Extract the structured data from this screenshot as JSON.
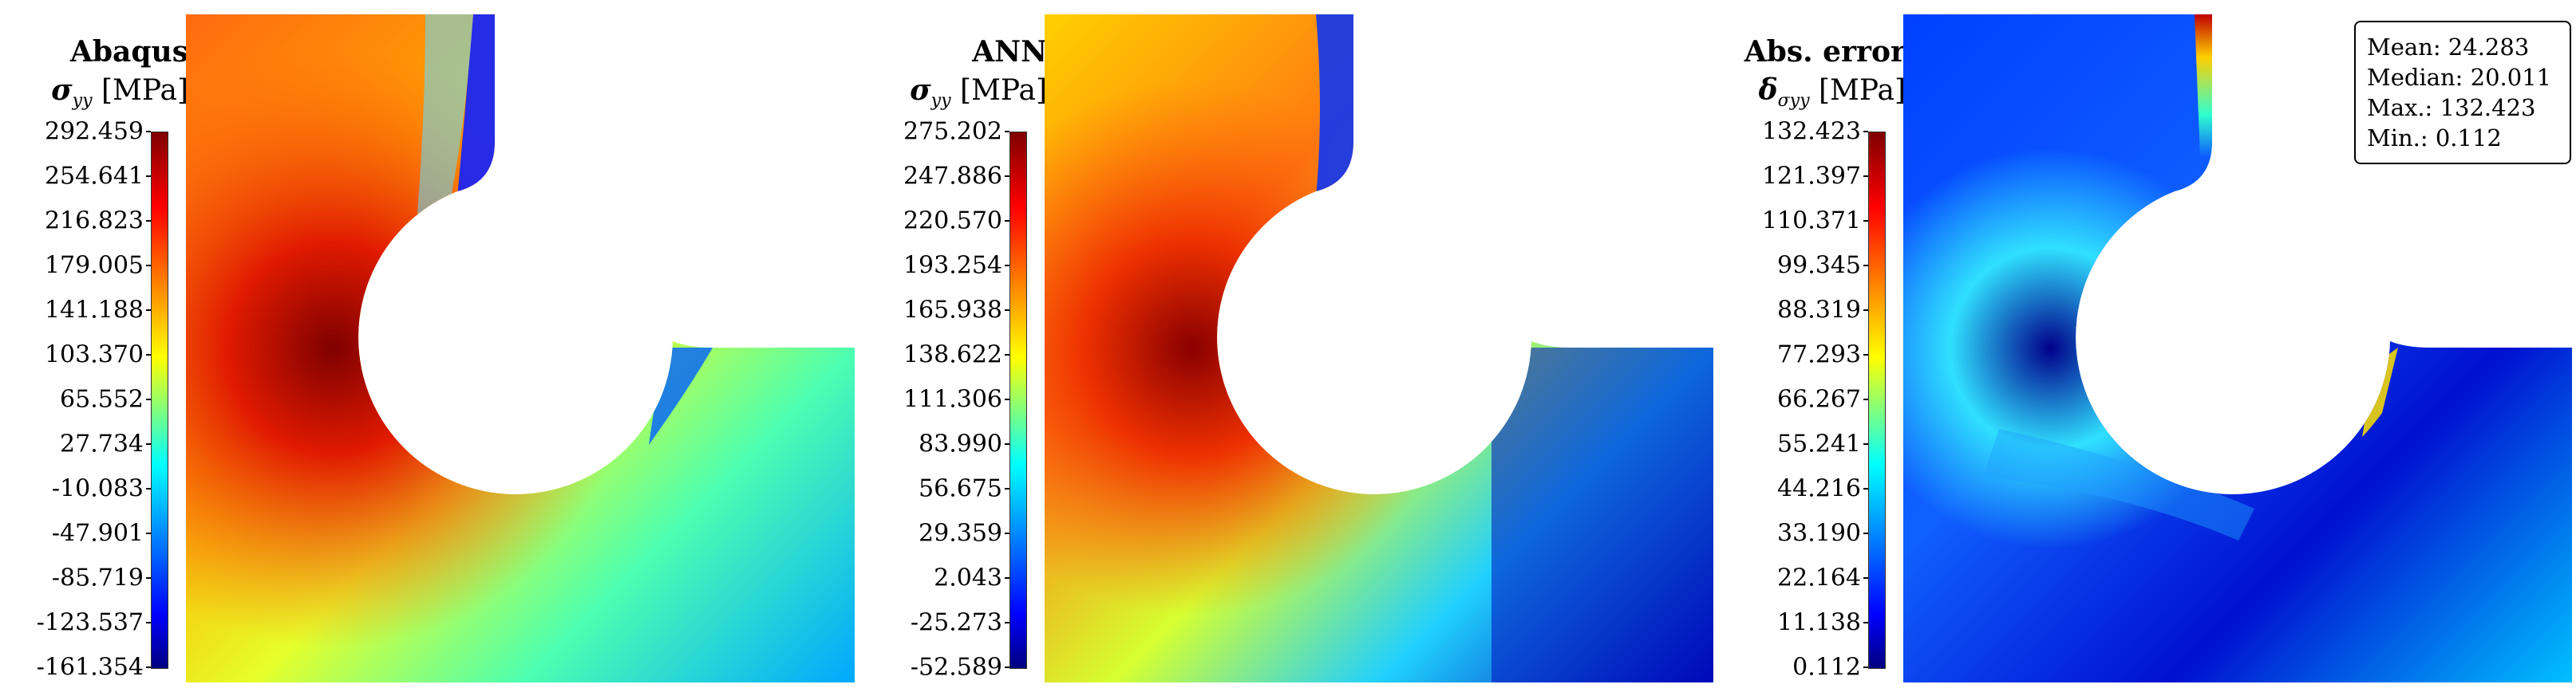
{
  "panels": [
    {
      "title": "Abaqus",
      "label_symbol": "σ",
      "label_sub": "yy",
      "label_unit": "[MPa]",
      "ticks": [
        "292.459",
        "254.641",
        "216.823",
        "179.005",
        "141.188",
        "103.370",
        "65.552",
        "27.734",
        "-10.083",
        "-47.901",
        "-85.719",
        "-123.537",
        "-161.354"
      ]
    },
    {
      "title": "ANN",
      "label_symbol": "σ",
      "label_sub": "yy",
      "label_unit": "[MPa]",
      "ticks": [
        "275.202",
        "247.886",
        "220.570",
        "193.254",
        "165.938",
        "138.622",
        "111.306",
        "83.990",
        "56.675",
        "29.359",
        "2.043",
        "-25.273",
        "-52.589"
      ]
    },
    {
      "title": "Abs. error",
      "label_symbol": "δ",
      "label_sub": "σyy",
      "label_unit": "[MPa]",
      "ticks": [
        "132.423",
        "121.397",
        "110.371",
        "99.345",
        "88.319",
        "77.293",
        "66.267",
        "55.241",
        "44.216",
        "33.190",
        "22.164",
        "11.138",
        "0.112"
      ]
    }
  ],
  "stats": {
    "mean": "Mean: 24.283",
    "median": "Median: 20.011",
    "max": "Max.: 132.423",
    "min": "Min.: 0.112"
  },
  "chart_data": [
    {
      "type": "heatmap",
      "title": "Abaqus",
      "colorbar_label": "σyy [MPa]",
      "colorbar_range": [
        -161.354,
        292.459
      ],
      "colormap": "jet"
    },
    {
      "type": "heatmap",
      "title": "ANN",
      "colorbar_label": "σyy [MPa]",
      "colorbar_range": [
        -52.589,
        275.202
      ],
      "colormap": "jet"
    },
    {
      "type": "heatmap",
      "title": "Abs. error",
      "colorbar_label": "δσyy [MPa]",
      "colorbar_range": [
        0.112,
        132.423
      ],
      "colormap": "jet"
    }
  ],
  "colors": {
    "jet_dark_red": "#7f0000",
    "jet_red": "#ff0000",
    "jet_yellow": "#ffff00",
    "jet_cyan": "#00ffff",
    "jet_blue": "#0000ff",
    "jet_dark_blue": "#00007f"
  }
}
